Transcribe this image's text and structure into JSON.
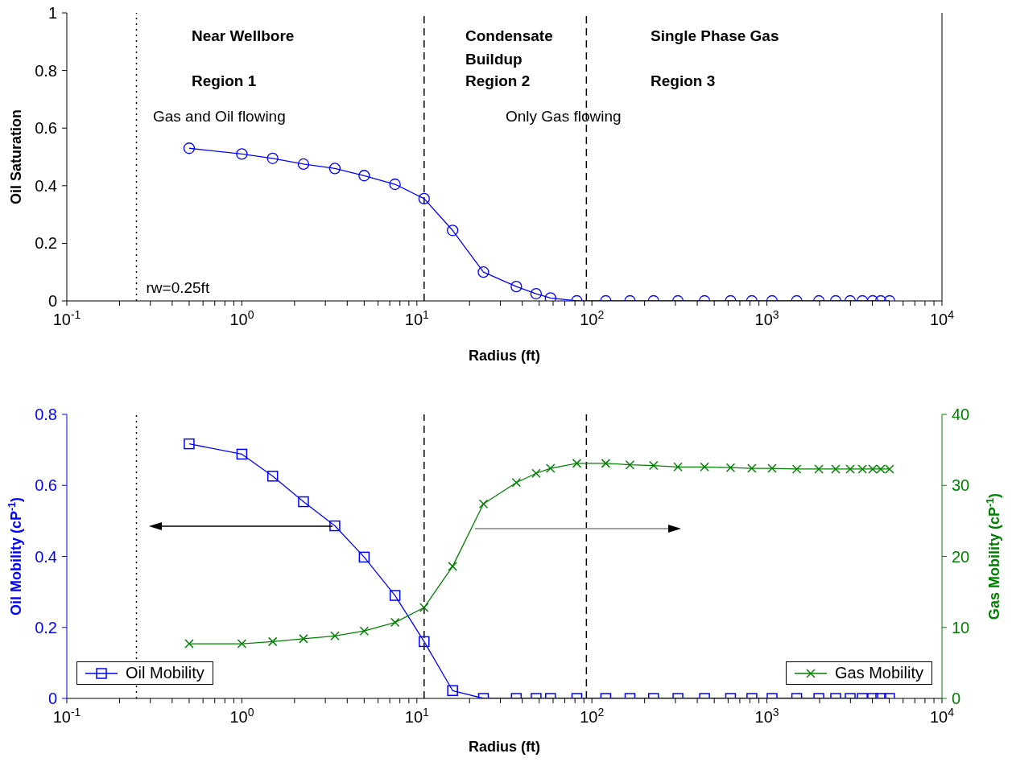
{
  "chart_data": [
    {
      "type": "line",
      "xlabel": "Radius (ft)",
      "ylabel": "Oil Saturation",
      "log": "x",
      "x": [
        0.5,
        1,
        1.5,
        2.25,
        3.4,
        5,
        7.5,
        11,
        16,
        24,
        37,
        48,
        58,
        82,
        120,
        165,
        225,
        310,
        440,
        620,
        820,
        1070,
        1480,
        1980,
        2470,
        2990,
        3510,
        4020,
        4470,
        5020
      ],
      "series": [
        {
          "color": "#0000ff",
          "marker": "circle",
          "values": [
            0.53,
            0.51,
            0.495,
            0.475,
            0.46,
            0.435,
            0.405,
            0.355,
            0.245,
            0.1,
            0.05,
            0.025,
            0.01,
            0,
            0,
            0,
            0,
            0,
            0,
            0,
            0,
            0,
            0,
            0,
            0,
            0,
            0,
            0,
            0,
            0
          ]
        }
      ],
      "xlim": [
        0.1,
        10000
      ],
      "xticks": [
        {
          "value": 0.1,
          "label": "10$^{-1}$"
        },
        {
          "value": 0.2,
          "label": null
        },
        {
          "value": 0.3,
          "label": null
        },
        {
          "value": 0.4,
          "label": null
        },
        {
          "value": 0.5,
          "label": null
        },
        {
          "value": 0.6,
          "label": null
        },
        {
          "value": 0.7,
          "label": null
        },
        {
          "value": 0.8,
          "label": null
        },
        {
          "value": 0.9,
          "label": null
        },
        {
          "value": 1,
          "label": "10$^{0}$"
        },
        {
          "value": 2,
          "label": null
        },
        {
          "value": 3,
          "label": null
        },
        {
          "value": 4,
          "label": null
        },
        {
          "value": 5,
          "label": null
        },
        {
          "value": 6,
          "label": null
        },
        {
          "value": 7,
          "label": null
        },
        {
          "value": 8,
          "label": null
        },
        {
          "value": 9,
          "label": null
        },
        {
          "value": 10,
          "label": "10$^{1}$"
        },
        {
          "value": 20,
          "label": null
        },
        {
          "value": 30,
          "label": null
        },
        {
          "value": 40,
          "label": null
        },
        {
          "value": 50,
          "label": null
        },
        {
          "value": 60,
          "label": null
        },
        {
          "value": 70,
          "label": null
        },
        {
          "value": 80,
          "label": null
        },
        {
          "value": 90,
          "label": null
        },
        {
          "value": 100,
          "label": "10$^{2}$"
        },
        {
          "value": 200,
          "label": null
        },
        {
          "value": 300,
          "label": null
        },
        {
          "value": 400,
          "label": null
        },
        {
          "value": 500,
          "label": null
        },
        {
          "value": 600,
          "label": null
        },
        {
          "value": 700,
          "label": null
        },
        {
          "value": 800,
          "label": null
        },
        {
          "value": 900,
          "label": null
        },
        {
          "value": 1000,
          "label": "10$^{3}$"
        },
        {
          "value": 2000,
          "label": null
        },
        {
          "value": 3000,
          "label": null
        },
        {
          "value": 4000,
          "label": null
        },
        {
          "value": 5000,
          "label": null
        },
        {
          "value": 6000,
          "label": null
        },
        {
          "value": 7000,
          "label": null
        },
        {
          "value": 8000,
          "label": null
        },
        {
          "value": 9000,
          "label": null
        },
        {
          "value": 10000,
          "label": "10$^{4}$"
        }
      ],
      "ylim": [
        0,
        1
      ],
      "yticks": [
        0,
        0.2,
        0.4,
        0.6,
        0.8,
        1
      ],
      "ref_lines": [
        {
          "axis": "x",
          "value": 0.25,
          "label": "rw=0.25ft",
          "color": "#000000",
          "line_style": "dotted"
        },
        {
          "axis": "x",
          "value": 11,
          "label": null,
          "color": "#000000",
          "line_style": "dashed"
        },
        {
          "axis": "x",
          "value": 93,
          "label": null,
          "color": "#000000",
          "line_style": "dashed"
        }
      ],
      "annotations": [
        "Near Wellbore",
        "Region 1",
        "Gas and Oil flowing",
        "Condensate Buildup",
        "Region 2",
        "Only Gas flowing",
        "Single Phase Gas",
        "Region 3"
      ]
    },
    {
      "type": "line",
      "xlabel": "Radius (ft)",
      "ylabel": "Oil Mobility (cP$^{-1}$)",
      "y2label": "Gas Mobility (cP$^{-1}$)",
      "log": "x",
      "legend": "bottom",
      "x": [
        0.5,
        1,
        1.5,
        2.25,
        3.4,
        5,
        7.5,
        11,
        16,
        24,
        37,
        48,
        58,
        82,
        120,
        165,
        225,
        310,
        440,
        620,
        820,
        1070,
        1480,
        1980,
        2470,
        2990,
        3510,
        4020,
        4470,
        5020
      ],
      "series": [
        {
          "name": "Oil Mobility",
          "color": "#0000ff",
          "marker": "square",
          "values": [
            0.717,
            0.688,
            0.626,
            0.554,
            0.486,
            0.398,
            0.29,
            0.16,
            0.022,
            0,
            0,
            0,
            0,
            0,
            0,
            0,
            0,
            0,
            0,
            0,
            0,
            0,
            0,
            0,
            0,
            0,
            0,
            0,
            0,
            0
          ]
        },
        {
          "name": "Gas Mobility",
          "color": "#008000",
          "marker": "cross",
          "axis": "y2",
          "values": [
            7.7,
            7.7,
            8.0,
            8.4,
            8.8,
            9.5,
            10.7,
            12.8,
            18.6,
            27.4,
            30.4,
            31.7,
            32.4,
            33.1,
            33.1,
            32.9,
            32.8,
            32.6,
            32.6,
            32.5,
            32.4,
            32.4,
            32.3,
            32.3,
            32.3,
            32.3,
            32.3,
            32.3,
            32.3,
            32.3
          ]
        }
      ],
      "xlim": [
        0.1,
        10000
      ],
      "xticks": [
        {
          "value": 0.1,
          "label": "10$^{-1}$"
        },
        {
          "value": 0.2,
          "label": null
        },
        {
          "value": 0.3,
          "label": null
        },
        {
          "value": 0.4,
          "label": null
        },
        {
          "value": 0.5,
          "label": null
        },
        {
          "value": 0.6,
          "label": null
        },
        {
          "value": 0.7,
          "label": null
        },
        {
          "value": 0.8,
          "label": null
        },
        {
          "value": 0.9,
          "label": null
        },
        {
          "value": 1,
          "label": "10$^{0}$"
        },
        {
          "value": 2,
          "label": null
        },
        {
          "value": 3,
          "label": null
        },
        {
          "value": 4,
          "label": null
        },
        {
          "value": 5,
          "label": null
        },
        {
          "value": 6,
          "label": null
        },
        {
          "value": 7,
          "label": null
        },
        {
          "value": 8,
          "label": null
        },
        {
          "value": 9,
          "label": null
        },
        {
          "value": 10,
          "label": "10$^{1}$"
        },
        {
          "value": 20,
          "label": null
        },
        {
          "value": 30,
          "label": null
        },
        {
          "value": 40,
          "label": null
        },
        {
          "value": 50,
          "label": null
        },
        {
          "value": 60,
          "label": null
        },
        {
          "value": 70,
          "label": null
        },
        {
          "value": 80,
          "label": null
        },
        {
          "value": 90,
          "label": null
        },
        {
          "value": 100,
          "label": "10$^{2}$"
        },
        {
          "value": 200,
          "label": null
        },
        {
          "value": 300,
          "label": null
        },
        {
          "value": 400,
          "label": null
        },
        {
          "value": 500,
          "label": null
        },
        {
          "value": 600,
          "label": null
        },
        {
          "value": 700,
          "label": null
        },
        {
          "value": 800,
          "label": null
        },
        {
          "value": 900,
          "label": null
        },
        {
          "value": 1000,
          "label": "10$^{3}$"
        },
        {
          "value": 2000,
          "label": null
        },
        {
          "value": 3000,
          "label": null
        },
        {
          "value": 4000,
          "label": null
        },
        {
          "value": 5000,
          "label": null
        },
        {
          "value": 6000,
          "label": null
        },
        {
          "value": 7000,
          "label": null
        },
        {
          "value": 8000,
          "label": null
        },
        {
          "value": 9000,
          "label": null
        },
        {
          "value": 10000,
          "label": "10$^{4}$"
        }
      ],
      "ylim": [
        0,
        0.8
      ],
      "yticks": [
        0,
        0.2,
        0.4,
        0.6,
        0.8
      ],
      "y2lim": [
        0,
        40
      ],
      "y2ticks": [
        0,
        10,
        20,
        30,
        40
      ],
      "ref_lines": [
        {
          "axis": "x",
          "value": 0.25,
          "label": null,
          "color": "#000000",
          "line_style": "dotted"
        },
        {
          "axis": "x",
          "value": 11,
          "label": null,
          "color": "#000000",
          "line_style": "dashed"
        },
        {
          "axis": "x",
          "value": 93,
          "label": null,
          "color": "#000000",
          "line_style": "dashed"
        }
      ]
    }
  ]
}
